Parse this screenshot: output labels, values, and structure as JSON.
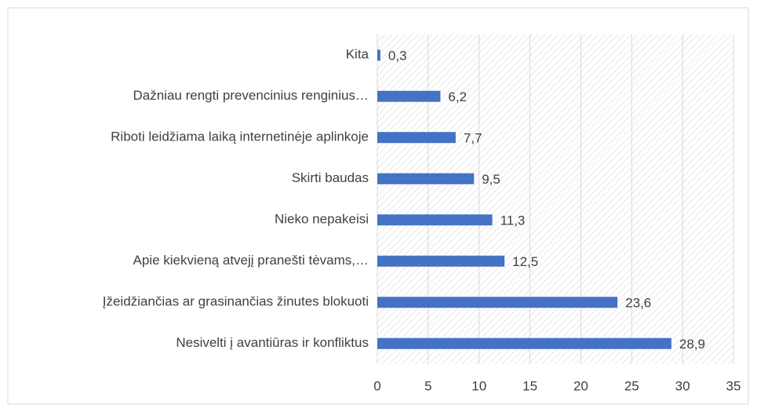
{
  "chart_data": {
    "type": "bar",
    "orientation": "horizontal",
    "categories": [
      "Kita",
      "Dažniau rengti prevencinius renginius…",
      "Riboti leidžiama laiką internetinėje aplinkoje",
      "Skirti baudas",
      "Nieko nepakeisi",
      "Apie kiekvieną atvejį pranešti tėvams,…",
      "Įžeidžiančias ar grasinančias žinutes blokuoti",
      "Nesivelti į avantiūras ir konfliktus"
    ],
    "values": [
      0.3,
      6.2,
      7.7,
      9.5,
      11.3,
      12.5,
      23.6,
      28.9
    ],
    "value_labels": [
      "0,3",
      "6,2",
      "7,7",
      "9,5",
      "11,3",
      "12,5",
      "23,6",
      "28,9"
    ],
    "color": "#4472c4",
    "xlim": [
      0,
      35
    ],
    "xticks": [
      0,
      5,
      10,
      15,
      20,
      25,
      30,
      35
    ],
    "grid": true
  }
}
